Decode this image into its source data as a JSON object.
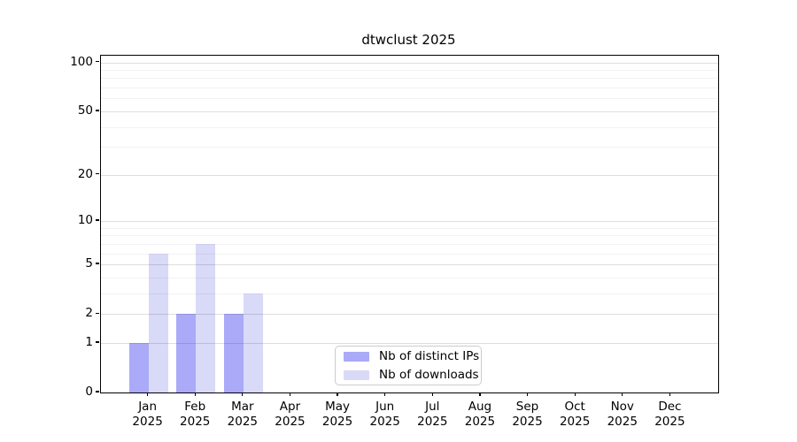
{
  "figure": {
    "background": "#ffffff",
    "spine_color": "#000000",
    "major_grid_color": "rgba(0,0,0,0.13)",
    "minor_grid_color": "rgba(0,0,0,0.05)"
  },
  "chart_data": {
    "type": "bar",
    "title": "dtwclust 2025",
    "categories": [
      "Jan",
      "Feb",
      "Mar",
      "Apr",
      "May",
      "Jun",
      "Jul",
      "Aug",
      "Sep",
      "Oct",
      "Nov",
      "Dec"
    ],
    "category_year": "2025",
    "series": [
      {
        "name": "Nb of distinct IPs",
        "color": "#aaaaf8",
        "values": [
          1,
          2,
          2,
          0,
          0,
          0,
          0,
          0,
          0,
          0,
          0,
          0
        ]
      },
      {
        "name": "Nb of downloads",
        "color": "#d9d9f8",
        "values": [
          6,
          7,
          3,
          0,
          0,
          0,
          0,
          0,
          0,
          0,
          0,
          0
        ]
      }
    ],
    "xlabel": "",
    "ylabel": "",
    "y_axis": {
      "scale": "log1p",
      "tick_labels": [
        0,
        1,
        2,
        5,
        10,
        20,
        50,
        100
      ],
      "minor_gridlines": [
        3,
        4,
        6,
        7,
        8,
        9,
        30,
        40,
        60,
        70,
        80,
        90
      ],
      "ylim": [
        0,
        110
      ]
    },
    "grid": "on",
    "legend": {
      "position": "lower center",
      "entries": [
        "Nb of distinct IPs",
        "Nb of downloads"
      ]
    }
  }
}
